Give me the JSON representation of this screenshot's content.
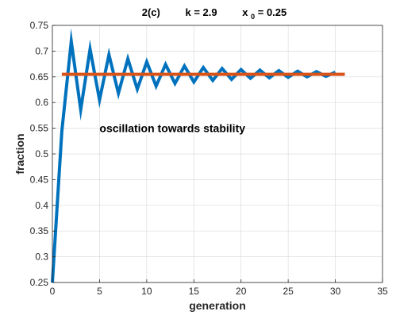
{
  "chart_data": {
    "type": "line",
    "title_parts": {
      "label": "2(c)",
      "k_text": "k  =  2.9",
      "x0_var": "x",
      "x0_sub": "0",
      "x0_text": "  =  0.25"
    },
    "xlabel": "generation",
    "ylabel": "fraction",
    "xlim": [
      0,
      35
    ],
    "ylim": [
      0.25,
      0.75
    ],
    "xticks": [
      0,
      5,
      10,
      15,
      20,
      25,
      30,
      35
    ],
    "yticks": [
      0.25,
      0.3,
      0.35,
      0.4,
      0.45,
      0.5,
      0.55,
      0.6,
      0.65,
      0.7,
      0.75
    ],
    "grid": true,
    "annotation": {
      "text": "oscillation towards stability",
      "x": 5,
      "y": 0.55
    },
    "series": [
      {
        "color": "#0072BD",
        "x": [
          0,
          1,
          2,
          3,
          4,
          5,
          6,
          7,
          8,
          9,
          10,
          11,
          12,
          13,
          14,
          15,
          16,
          17,
          18,
          19,
          20,
          21,
          22,
          23,
          24,
          25,
          26,
          27,
          28,
          29,
          30
        ],
        "values": [
          0.25,
          0.544,
          0.719,
          0.586,
          0.704,
          0.605,
          0.693,
          0.618,
          0.685,
          0.626,
          0.679,
          0.632,
          0.674,
          0.637,
          0.671,
          0.64,
          0.668,
          0.643,
          0.666,
          0.645,
          0.664,
          0.647,
          0.663,
          0.648,
          0.662,
          0.649,
          0.661,
          0.65,
          0.66,
          0.651,
          0.659
        ]
      },
      {
        "color": "#D95319",
        "x": [
          1,
          31
        ],
        "values": [
          0.655,
          0.655
        ]
      }
    ]
  }
}
